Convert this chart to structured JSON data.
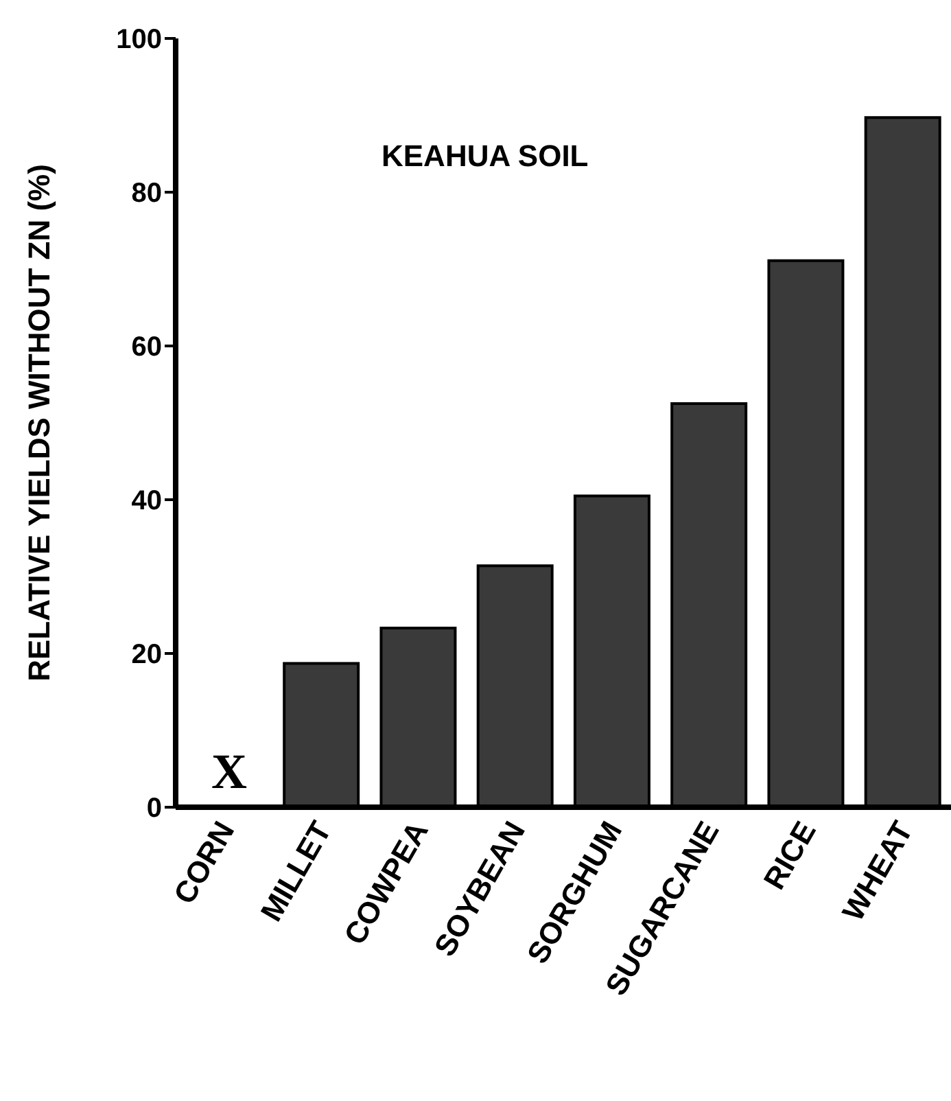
{
  "chart_data": {
    "type": "bar",
    "ylabel": "RELATIVE YIELDS WITHOUT ZN (%)",
    "categories": [
      "CORN",
      "MILLET",
      "COWPEA",
      "SOYBEAN",
      "SORGHUM",
      "SUGARCANE",
      "RICE",
      "WHEAT"
    ],
    "values": [
      null,
      18.7,
      23.3,
      31.4,
      40.5,
      52.5,
      71.1,
      89.7
    ],
    "color": "#3a3a3a",
    "ylim": [
      0,
      100
    ],
    "yticks": [
      0,
      20,
      40,
      60,
      80,
      100
    ],
    "grid": false,
    "legend": false,
    "annotations": [
      "KEAHUA SOIL",
      "X"
    ]
  }
}
